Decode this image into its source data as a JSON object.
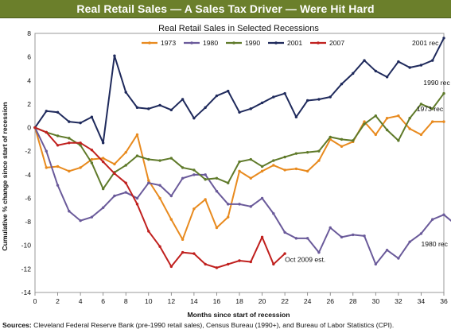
{
  "banner_title": "Real Retail Sales — A Sales Tax Driver — Were Hit Hard",
  "source": {
    "label": "Sources:",
    "text": "Cleveland Federal Reserve Bank (pre-1990 retail sales), Census Bureau (1990+), and Bureau of Labor Statistics (CPI)."
  },
  "chart_data": {
    "type": "line",
    "title": "Real Retail Sales in Selected Recessions",
    "xlabel": "Months since start of recession",
    "ylabel": "Cumulative % change since start of recession",
    "xlim": [
      0,
      36
    ],
    "ylim": [
      -14,
      8
    ],
    "xticks": [
      0,
      2,
      4,
      6,
      8,
      10,
      12,
      14,
      16,
      18,
      20,
      22,
      24,
      26,
      28,
      30,
      32,
      34,
      36
    ],
    "yticks": [
      8,
      6,
      4,
      2,
      0,
      -2,
      -4,
      -6,
      -8,
      -10,
      -12,
      -14
    ],
    "grid": true,
    "legend_position": "top",
    "series": [
      {
        "name": "1973",
        "color": "#e88a1e",
        "values": [
          0,
          -3.4,
          -3.3,
          -3.7,
          -3.4,
          -2.7,
          -2.6,
          -3.1,
          -2.1,
          -0.6,
          -4.5,
          -6.0,
          -7.8,
          -9.5,
          -6.9,
          -6.1,
          -8.5,
          -7.6,
          -3.7,
          -4.3,
          -3.7,
          -3.2,
          -3.6,
          -3.5,
          -3.7,
          -2.8,
          -1.0,
          -1.6,
          -1.2,
          0.5,
          -0.6,
          0.8,
          1.0,
          -0.1,
          -0.6,
          0.5,
          0.5
        ]
      },
      {
        "name": "1980",
        "color": "#6a5a9a",
        "values": [
          0,
          -2.0,
          -4.9,
          -7.1,
          -7.9,
          -7.6,
          -6.8,
          -5.8,
          -5.5,
          -6.0,
          -4.7,
          -4.9,
          -5.8,
          -4.3,
          -4.0,
          -4.0,
          -5.4,
          -6.5,
          -6.5,
          -6.7,
          -6.0,
          -7.3,
          -8.9,
          -9.4,
          -9.4,
          -10.6,
          -8.5,
          -9.3,
          -9.1,
          -9.2,
          -11.6,
          -10.4,
          -11.1,
          -9.7,
          -9.0,
          -7.8,
          -7.4,
          -8.2
        ]
      },
      {
        "name": "1990",
        "color": "#5f7a2a",
        "values": [
          0,
          -0.4,
          -0.7,
          -0.9,
          -1.5,
          -3.0,
          -5.2,
          -3.8,
          -3.2,
          -2.4,
          -2.7,
          -2.8,
          -2.6,
          -3.4,
          -3.6,
          -4.4,
          -4.3,
          -4.7,
          -2.9,
          -2.7,
          -3.3,
          -2.8,
          -2.5,
          -2.2,
          -2.1,
          -2.0,
          -0.8,
          -1.0,
          -1.1,
          0.3,
          1.0,
          -0.2,
          -1.1,
          0.8,
          2.0,
          1.6,
          2.9
        ]
      },
      {
        "name": "2001",
        "color": "#1f2a5c",
        "values": [
          0,
          1.4,
          1.3,
          0.5,
          0.4,
          0.9,
          -1.3,
          6.1,
          3.0,
          1.7,
          1.6,
          1.9,
          1.5,
          2.4,
          0.8,
          1.7,
          2.7,
          3.1,
          1.3,
          1.6,
          2.1,
          2.6,
          2.9,
          0.9,
          2.3,
          2.4,
          2.6,
          3.7,
          4.6,
          5.7,
          4.8,
          4.3,
          5.6,
          5.1,
          5.3,
          5.7,
          7.6
        ]
      },
      {
        "name": "2007",
        "color": "#c0201e",
        "values": [
          0,
          -0.4,
          -1.5,
          -1.3,
          -1.3,
          -1.9,
          -2.9,
          -3.9,
          -4.7,
          -6.5,
          -8.8,
          -10.1,
          -11.8,
          -10.6,
          -10.7,
          -11.6,
          -11.9,
          -11.6,
          -11.3,
          -11.4,
          -9.3,
          -11.6,
          -10.7
        ]
      }
    ],
    "annotations": [
      {
        "text": "2001 rec",
        "x": 33.2,
        "y": 7.2
      },
      {
        "text": "1990 rec",
        "x": 34.2,
        "y": 3.8
      },
      {
        "text": "1973 rec",
        "x": 33.6,
        "y": 1.6
      },
      {
        "text": "1980 rec",
        "x": 34.0,
        "y": -9.9
      },
      {
        "text": "Oct 2009 est.",
        "x": 22.0,
        "y": -11.2
      }
    ]
  }
}
